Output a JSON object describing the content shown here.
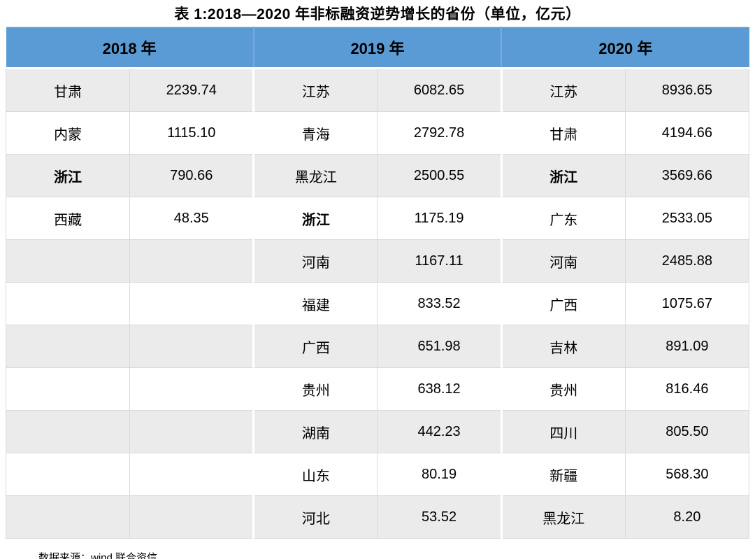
{
  "title": "表 1:2018—2020 年非标融资逆势增长的省份（单位，亿元）",
  "table": {
    "row_count": 11,
    "unit": "亿元",
    "groups": [
      {
        "year": "2018 年",
        "rows": [
          {
            "province": "甘肃",
            "value": "2239.74",
            "bold": false
          },
          {
            "province": "内蒙",
            "value": "1115.10",
            "bold": false
          },
          {
            "province": "浙江",
            "value": "790.66",
            "bold": true
          },
          {
            "province": "西藏",
            "value": "48.35",
            "bold": false
          }
        ]
      },
      {
        "year": "2019 年",
        "rows": [
          {
            "province": "江苏",
            "value": "6082.65",
            "bold": false
          },
          {
            "province": "青海",
            "value": "2792.78",
            "bold": false
          },
          {
            "province": "黑龙江",
            "value": "2500.55",
            "bold": false
          },
          {
            "province": "浙江",
            "value": "1175.19",
            "bold": true
          },
          {
            "province": "河南",
            "value": "1167.11",
            "bold": false
          },
          {
            "province": "福建",
            "value": "833.52",
            "bold": false
          },
          {
            "province": "广西",
            "value": "651.98",
            "bold": false
          },
          {
            "province": "贵州",
            "value": "638.12",
            "bold": false
          },
          {
            "province": "湖南",
            "value": "442.23",
            "bold": false
          },
          {
            "province": "山东",
            "value": "80.19",
            "bold": false
          },
          {
            "province": "河北",
            "value": "53.52",
            "bold": false
          }
        ]
      },
      {
        "year": "2020 年",
        "rows": [
          {
            "province": "江苏",
            "value": "8936.65",
            "bold": false
          },
          {
            "province": "甘肃",
            "value": "4194.66",
            "bold": false
          },
          {
            "province": "浙江",
            "value": "3569.66",
            "bold": true
          },
          {
            "province": "广东",
            "value": "2533.05",
            "bold": false
          },
          {
            "province": "河南",
            "value": "2485.88",
            "bold": false
          },
          {
            "province": "广西",
            "value": "1075.67",
            "bold": false
          },
          {
            "province": "吉林",
            "value": "891.09",
            "bold": false
          },
          {
            "province": "贵州",
            "value": "816.46",
            "bold": false
          },
          {
            "province": "四川",
            "value": "805.50",
            "bold": false
          },
          {
            "province": "新疆",
            "value": "568.30",
            "bold": false
          },
          {
            "province": "黑龙江",
            "value": "8.20",
            "bold": false
          }
        ]
      }
    ]
  },
  "footer": {
    "source": "数据来源：wind,联合资信"
  },
  "colors": {
    "header_bg": "#5b9bd5",
    "row_alt_bg": "#ebebeb",
    "row_bg": "#ffffff",
    "border": "#d9d9d9",
    "text": "#000000"
  }
}
